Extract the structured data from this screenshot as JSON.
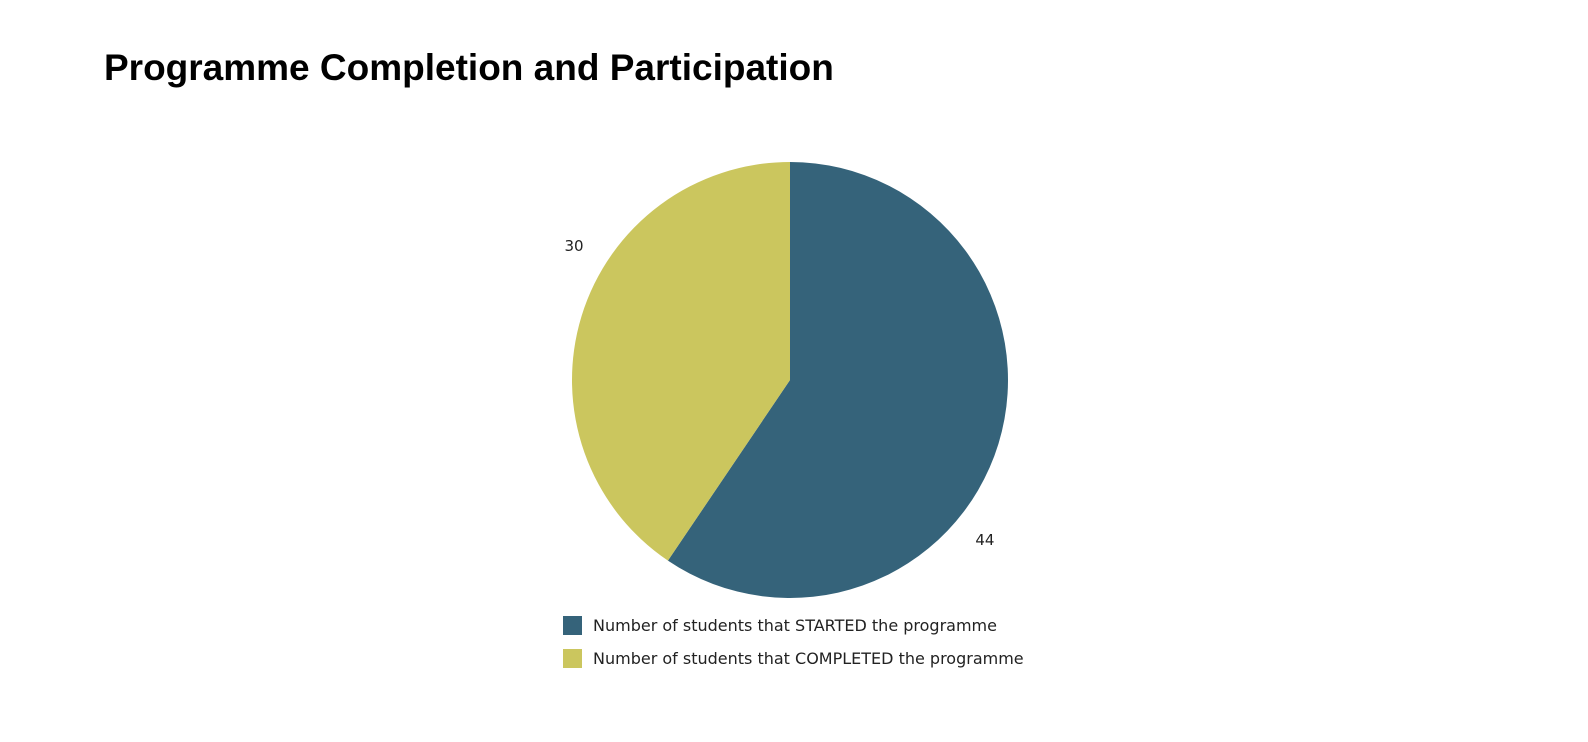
{
  "page": {
    "title": "Programme Completion and Participation"
  },
  "chart_data": {
    "type": "pie",
    "title": "Programme Completion and Participation",
    "slices": [
      {
        "label": "Number of students that STARTED the programme",
        "value": 44,
        "display_value": "44",
        "color": "#35637a"
      },
      {
        "label": "Number of students that COMPLETED the programme",
        "value": 30,
        "display_value": "30",
        "color": "#cbc65e"
      }
    ],
    "start_angle_deg": 0,
    "direction": "clockwise",
    "legend_position": "bottom"
  }
}
